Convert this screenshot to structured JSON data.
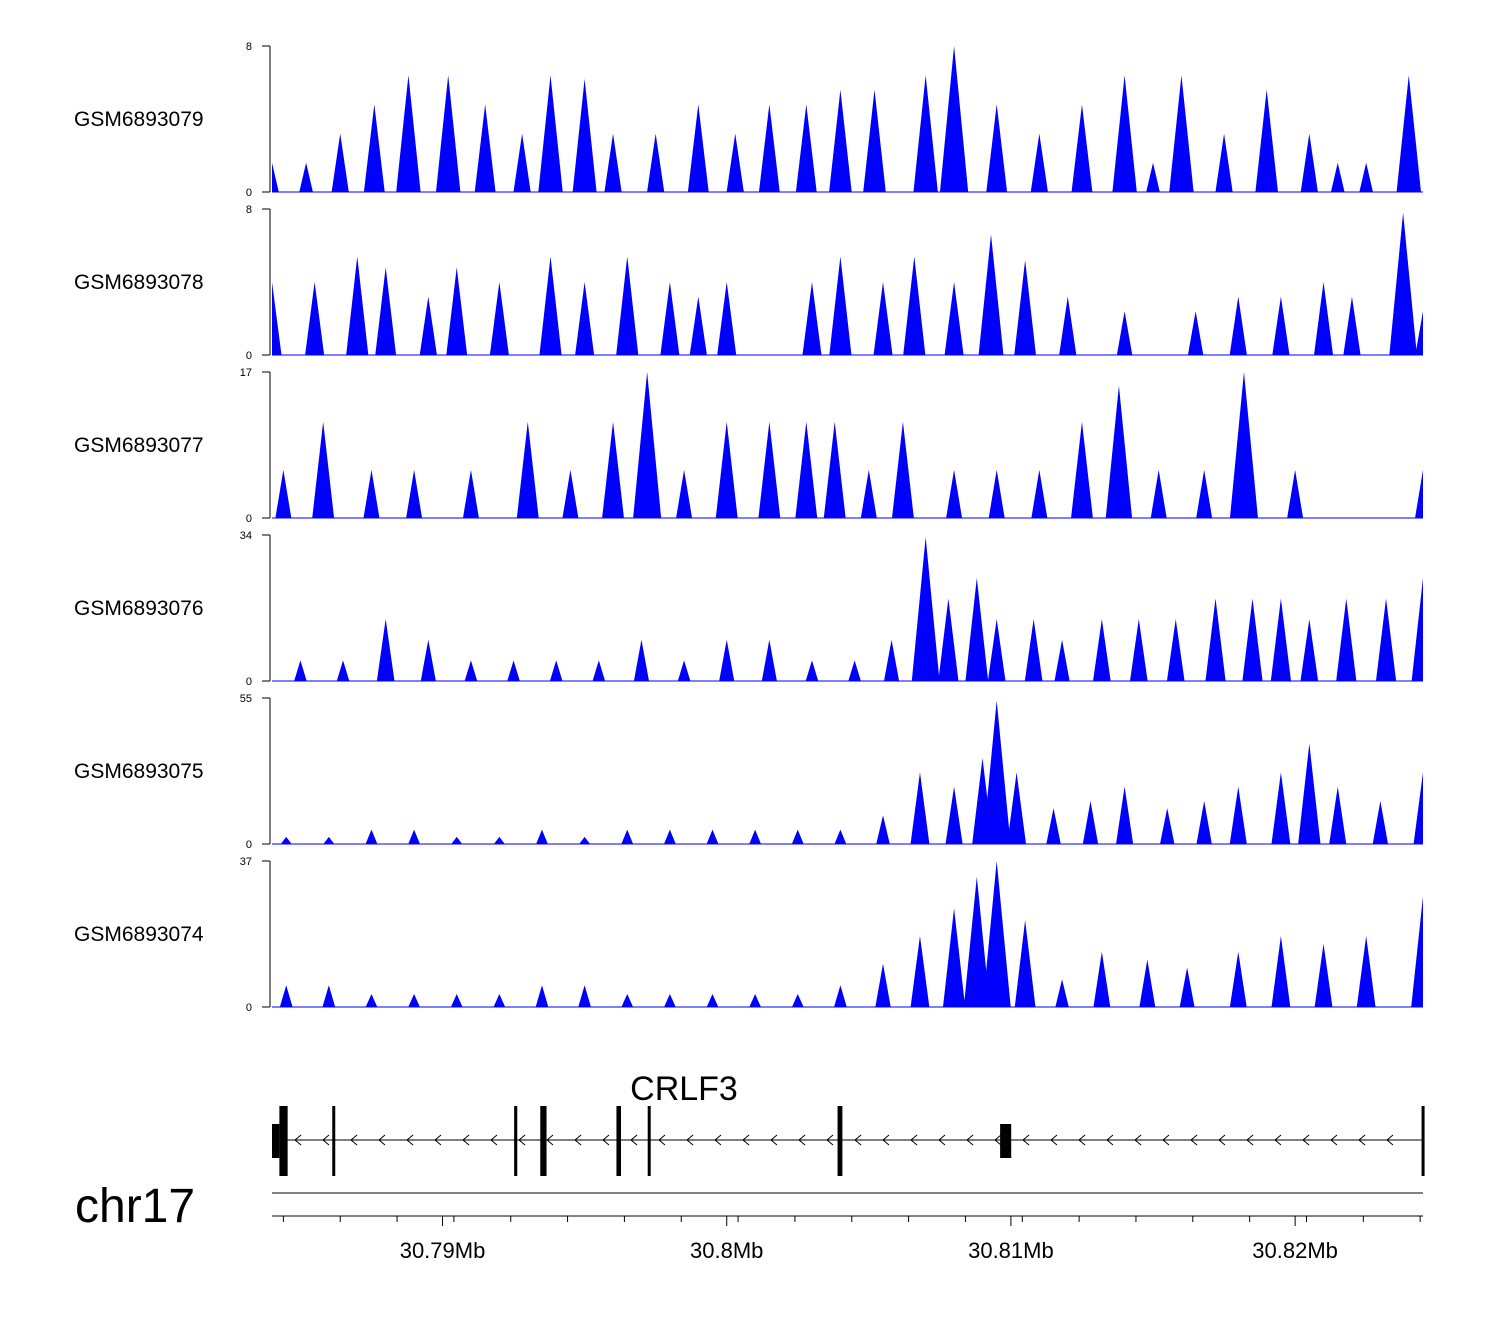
{
  "chart_data": {
    "type": "area",
    "title": "",
    "region": {
      "start": 30.784,
      "end": 30.8245
    },
    "series": [
      {
        "name": "GSM6893079",
        "ymax": 8,
        "peaks": [
          [
            30.784,
            1.6
          ],
          [
            30.7852,
            1.6
          ],
          [
            30.7864,
            3.2
          ],
          [
            30.7876,
            4.8
          ],
          [
            30.7888,
            6.4
          ],
          [
            30.7902,
            6.4
          ],
          [
            30.7915,
            4.8
          ],
          [
            30.7928,
            3.2
          ],
          [
            30.7938,
            6.4
          ],
          [
            30.795,
            6.2
          ],
          [
            30.796,
            3.2
          ],
          [
            30.7975,
            3.2
          ],
          [
            30.799,
            4.8
          ],
          [
            30.8003,
            3.2
          ],
          [
            30.8015,
            4.8
          ],
          [
            30.8028,
            4.8
          ],
          [
            30.804,
            5.6
          ],
          [
            30.8052,
            5.6
          ],
          [
            30.807,
            6.4
          ],
          [
            30.808,
            8.1
          ],
          [
            30.8095,
            4.8
          ],
          [
            30.811,
            3.2
          ],
          [
            30.8125,
            4.8
          ],
          [
            30.814,
            6.4
          ],
          [
            30.815,
            1.6
          ],
          [
            30.816,
            6.4
          ],
          [
            30.8175,
            3.2
          ],
          [
            30.819,
            5.6
          ],
          [
            30.8205,
            3.2
          ],
          [
            30.8215,
            1.6
          ],
          [
            30.8225,
            1.6
          ],
          [
            30.824,
            6.4
          ]
        ]
      },
      {
        "name": "GSM6893078",
        "ymax": 8,
        "peaks": [
          [
            30.784,
            4.0
          ],
          [
            30.7855,
            4.0
          ],
          [
            30.787,
            5.4
          ],
          [
            30.788,
            4.8
          ],
          [
            30.7895,
            3.2
          ],
          [
            30.7905,
            4.8
          ],
          [
            30.792,
            4.0
          ],
          [
            30.7938,
            5.4
          ],
          [
            30.795,
            4.0
          ],
          [
            30.7965,
            5.4
          ],
          [
            30.798,
            4.0
          ],
          [
            30.799,
            3.2
          ],
          [
            30.8,
            4.0
          ],
          [
            30.803,
            4.0
          ],
          [
            30.804,
            5.4
          ],
          [
            30.8055,
            4.0
          ],
          [
            30.8066,
            5.4
          ],
          [
            30.808,
            4.0
          ],
          [
            30.8093,
            6.6
          ],
          [
            30.8105,
            5.2
          ],
          [
            30.812,
            3.2
          ],
          [
            30.814,
            2.4
          ],
          [
            30.8165,
            2.4
          ],
          [
            30.818,
            3.2
          ],
          [
            30.8195,
            3.2
          ],
          [
            30.821,
            4.0
          ],
          [
            30.822,
            3.2
          ],
          [
            30.8238,
            7.8
          ],
          [
            30.8245,
            2.4
          ]
        ]
      },
      {
        "name": "GSM6893077",
        "ymax": 17,
        "peaks": [
          [
            30.7844,
            5.6
          ],
          [
            30.7858,
            11.2
          ],
          [
            30.7875,
            5.6
          ],
          [
            30.789,
            5.6
          ],
          [
            30.791,
            5.6
          ],
          [
            30.793,
            11.2
          ],
          [
            30.7945,
            5.6
          ],
          [
            30.796,
            11.2
          ],
          [
            30.7972,
            17.0
          ],
          [
            30.7985,
            5.6
          ],
          [
            30.8,
            11.2
          ],
          [
            30.8015,
            11.2
          ],
          [
            30.8028,
            11.2
          ],
          [
            30.8038,
            11.2
          ],
          [
            30.805,
            5.6
          ],
          [
            30.8062,
            11.2
          ],
          [
            30.808,
            5.6
          ],
          [
            30.8095,
            5.6
          ],
          [
            30.811,
            5.6
          ],
          [
            30.8125,
            11.2
          ],
          [
            30.8138,
            15.4
          ],
          [
            30.8152,
            5.6
          ],
          [
            30.8168,
            5.6
          ],
          [
            30.8182,
            17.0
          ],
          [
            30.82,
            5.6
          ],
          [
            30.8245,
            5.6
          ]
        ]
      },
      {
        "name": "GSM6893076",
        "ymax": 34,
        "peaks": [
          [
            30.785,
            4.8
          ],
          [
            30.7865,
            4.8
          ],
          [
            30.788,
            14.4
          ],
          [
            30.7895,
            9.6
          ],
          [
            30.791,
            4.8
          ],
          [
            30.7925,
            4.8
          ],
          [
            30.794,
            4.8
          ],
          [
            30.7955,
            4.8
          ],
          [
            30.797,
            9.6
          ],
          [
            30.7985,
            4.8
          ],
          [
            30.8,
            9.6
          ],
          [
            30.8015,
            9.6
          ],
          [
            30.803,
            4.8
          ],
          [
            30.8045,
            4.8
          ],
          [
            30.8058,
            9.6
          ],
          [
            30.807,
            33.5
          ],
          [
            30.8078,
            19.2
          ],
          [
            30.8088,
            24.0
          ],
          [
            30.8095,
            14.4
          ],
          [
            30.8108,
            14.4
          ],
          [
            30.8118,
            9.6
          ],
          [
            30.8132,
            14.4
          ],
          [
            30.8145,
            14.4
          ],
          [
            30.8158,
            14.4
          ],
          [
            30.8172,
            19.2
          ],
          [
            30.8185,
            19.2
          ],
          [
            30.8195,
            19.2
          ],
          [
            30.8205,
            14.4
          ],
          [
            30.8218,
            19.2
          ],
          [
            30.8232,
            19.2
          ],
          [
            30.8245,
            24.0
          ]
        ]
      },
      {
        "name": "GSM6893075",
        "ymax": 55,
        "peaks": [
          [
            30.7845,
            2.7
          ],
          [
            30.786,
            2.7
          ],
          [
            30.7875,
            5.4
          ],
          [
            30.789,
            5.4
          ],
          [
            30.7905,
            2.7
          ],
          [
            30.792,
            2.7
          ],
          [
            30.7935,
            5.4
          ],
          [
            30.795,
            2.7
          ],
          [
            30.7965,
            5.4
          ],
          [
            30.798,
            5.4
          ],
          [
            30.7995,
            5.4
          ],
          [
            30.801,
            5.4
          ],
          [
            30.8025,
            5.4
          ],
          [
            30.804,
            5.4
          ],
          [
            30.8055,
            10.8
          ],
          [
            30.8068,
            27.0
          ],
          [
            30.808,
            21.6
          ],
          [
            30.809,
            32.4
          ],
          [
            30.8095,
            54.0
          ],
          [
            30.8102,
            27.0
          ],
          [
            30.8115,
            13.5
          ],
          [
            30.8128,
            16.2
          ],
          [
            30.814,
            21.6
          ],
          [
            30.8155,
            13.5
          ],
          [
            30.8168,
            16.2
          ],
          [
            30.818,
            21.6
          ],
          [
            30.8195,
            27.0
          ],
          [
            30.8205,
            37.8
          ],
          [
            30.8215,
            21.6
          ],
          [
            30.823,
            16.2
          ],
          [
            30.8245,
            27.0
          ]
        ]
      },
      {
        "name": "GSM6893074",
        "ymax": 37,
        "peaks": [
          [
            30.7845,
            5.5
          ],
          [
            30.786,
            5.5
          ],
          [
            30.7875,
            3.3
          ],
          [
            30.789,
            3.3
          ],
          [
            30.7905,
            3.3
          ],
          [
            30.792,
            3.3
          ],
          [
            30.7935,
            5.5
          ],
          [
            30.795,
            5.5
          ],
          [
            30.7965,
            3.3
          ],
          [
            30.798,
            3.3
          ],
          [
            30.7995,
            3.3
          ],
          [
            30.801,
            3.3
          ],
          [
            30.8025,
            3.3
          ],
          [
            30.804,
            5.5
          ],
          [
            30.8055,
            11.0
          ],
          [
            30.8068,
            18.0
          ],
          [
            30.808,
            25.0
          ],
          [
            30.8088,
            33.0
          ],
          [
            30.8095,
            37.0
          ],
          [
            30.8105,
            22.0
          ],
          [
            30.8118,
            7.0
          ],
          [
            30.8132,
            14.0
          ],
          [
            30.8148,
            12.0
          ],
          [
            30.8162,
            10.0
          ],
          [
            30.818,
            14.0
          ],
          [
            30.8195,
            18.0
          ],
          [
            30.821,
            16.0
          ],
          [
            30.8225,
            18.0
          ],
          [
            30.8245,
            28.0
          ]
        ]
      }
    ],
    "gene": {
      "name": "CRLF3",
      "strand": "-",
      "exons": [
        [
          30.784,
          30.78426
        ],
        [
          30.78426,
          30.78455
        ],
        [
          30.78612,
          30.78618
        ],
        [
          30.79252,
          30.79263
        ],
        [
          30.79344,
          30.79366
        ],
        [
          30.79612,
          30.79628
        ],
        [
          30.79722,
          30.79728
        ],
        [
          30.8039,
          30.80407
        ],
        [
          30.80962,
          30.81001
        ],
        [
          30.82445,
          30.82455
        ]
      ]
    },
    "chromosome": "chr17",
    "x_ticks": [
      "30.79Mb",
      "30.8Mb",
      "30.81Mb",
      "30.82Mb"
    ],
    "x_tick_values": [
      30.79,
      30.8,
      30.81,
      30.82
    ],
    "xlabel": "",
    "ylabel": ""
  },
  "colors": {
    "signal": "#0000ff",
    "axis": "#000000",
    "gene": "#000000"
  }
}
